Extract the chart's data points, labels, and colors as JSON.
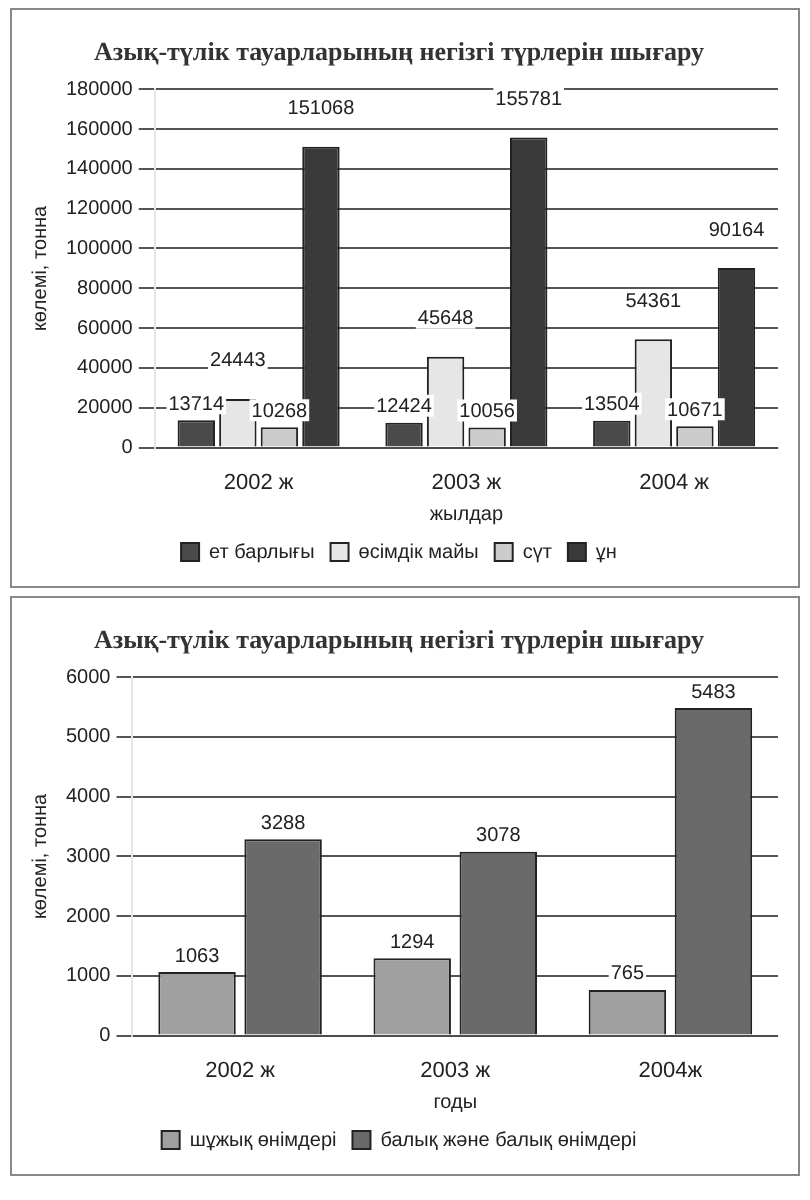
{
  "chart_data": [
    {
      "type": "bar",
      "title": "Азық-түлік тауарларының негізгі түрлерін шығару",
      "xlabel": "жылдар",
      "ylabel": "көлемі, тонна",
      "categories": [
        "2002 ж",
        "2003 ж",
        "2004 ж"
      ],
      "series": [
        {
          "name": "ет барлығы",
          "color": "#4a4a4a",
          "values": [
            13714,
            12424,
            13504
          ]
        },
        {
          "name": "өсімдік майы",
          "color": "#e6e6e6",
          "values": [
            24443,
            45648,
            54361
          ]
        },
        {
          "name": "сүт",
          "color": "#cccccc",
          "values": [
            10268,
            10056,
            10671
          ]
        },
        {
          "name": "ұн",
          "color": "#3a3a3a",
          "values": [
            151068,
            155781,
            90164
          ]
        }
      ],
      "ylim": [
        0,
        180000
      ],
      "yticks": [
        0,
        20000,
        40000,
        60000,
        80000,
        100000,
        120000,
        140000,
        160000,
        180000
      ],
      "grid": "y",
      "legend": "bottom",
      "data_labels": true
    },
    {
      "type": "bar",
      "title": "Азық-түлік тауарларының негізгі түрлерін шығару",
      "xlabel": "годы",
      "ylabel": "көлемі, тонна",
      "categories": [
        "2002 ж",
        "2003 ж",
        "2004ж"
      ],
      "series": [
        {
          "name": "шұжық өнімдері",
          "color": "#a0a0a0",
          "values": [
            1063,
            1294,
            765
          ]
        },
        {
          "name": "балық және балық өнімдері",
          "color": "#6a6a6a",
          "values": [
            3288,
            3078,
            5483
          ]
        }
      ],
      "ylim": [
        0,
        6000
      ],
      "yticks": [
        0,
        1000,
        2000,
        3000,
        4000,
        5000,
        6000
      ],
      "grid": "y",
      "legend": "bottom",
      "data_labels": true
    }
  ]
}
